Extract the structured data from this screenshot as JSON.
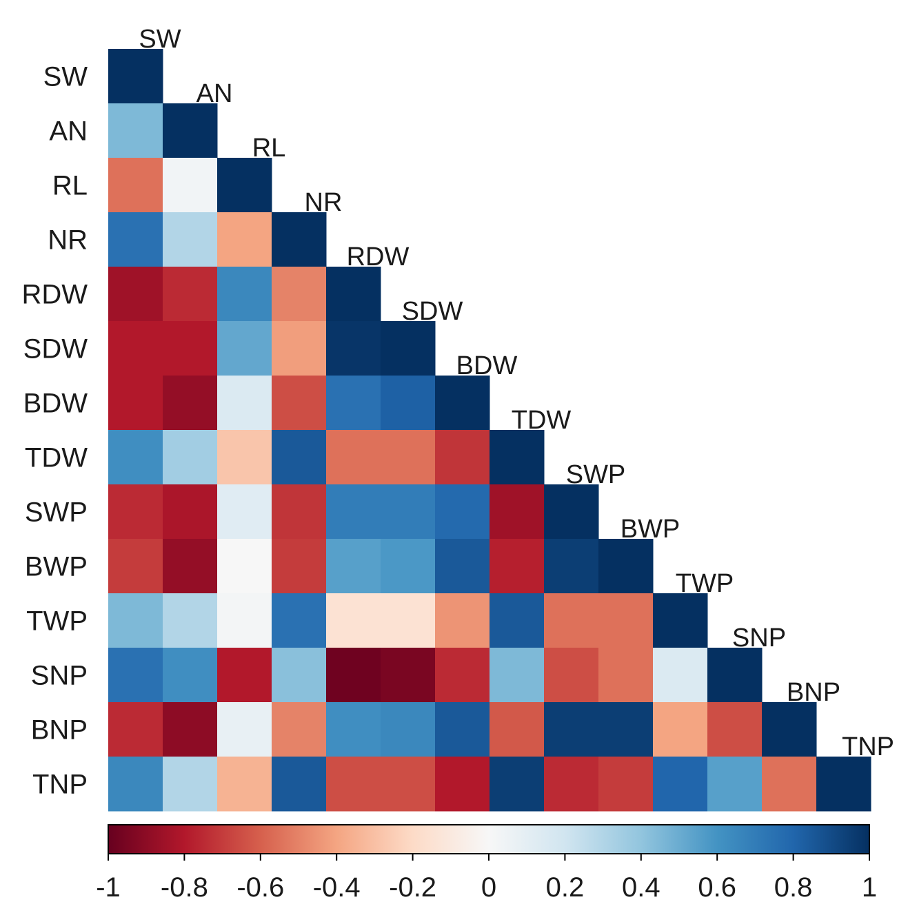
{
  "chart_data": {
    "type": "heatmap",
    "subtype": "correlation-lower-triangle",
    "title": "",
    "variables": [
      "SW",
      "AN",
      "RL",
      "NR",
      "RDW",
      "SDW",
      "BDW",
      "TDW",
      "SWP",
      "BWP",
      "TWP",
      "SNP",
      "BNP",
      "TNP"
    ],
    "matrix": [
      [
        1.0,
        0.45,
        -0.55,
        0.75,
        -0.85,
        -0.8,
        -0.8,
        0.62,
        -0.75,
        -0.7,
        0.45,
        0.75,
        -0.75,
        0.65
      ],
      [
        0.45,
        1.0,
        0.03,
        0.3,
        -0.75,
        -0.8,
        -0.88,
        0.35,
        -0.82,
        -0.88,
        0.3,
        0.62,
        -0.9,
        0.3
      ],
      [
        -0.55,
        0.03,
        1.0,
        -0.4,
        0.65,
        0.52,
        0.15,
        -0.28,
        0.12,
        0.0,
        0.02,
        -0.8,
        0.08,
        -0.35
      ],
      [
        0.75,
        0.3,
        -0.4,
        1.0,
        -0.5,
        -0.42,
        -0.65,
        0.85,
        -0.72,
        -0.7,
        0.75,
        0.42,
        -0.5,
        0.85
      ],
      [
        -0.85,
        -0.75,
        0.65,
        -0.5,
        1.0,
        0.98,
        0.75,
        -0.55,
        0.7,
        0.55,
        -0.15,
        -0.98,
        0.62,
        -0.65
      ],
      [
        -0.8,
        -0.8,
        0.52,
        -0.42,
        0.98,
        1.0,
        0.82,
        -0.55,
        0.7,
        0.58,
        -0.15,
        -0.95,
        0.65,
        -0.65
      ],
      [
        -0.8,
        -0.88,
        0.15,
        -0.65,
        0.75,
        0.82,
        1.0,
        -0.72,
        0.78,
        0.85,
        -0.45,
        -0.75,
        0.85,
        -0.8
      ],
      [
        0.62,
        0.35,
        -0.28,
        0.85,
        -0.55,
        -0.55,
        -0.72,
        1.0,
        -0.85,
        -0.78,
        0.85,
        0.45,
        -0.62,
        0.95
      ],
      [
        -0.75,
        -0.82,
        0.12,
        -0.72,
        0.7,
        0.7,
        0.78,
        -0.85,
        1.0,
        0.95,
        -0.55,
        -0.65,
        0.95,
        -0.75
      ],
      [
        -0.7,
        -0.88,
        0.0,
        -0.7,
        0.55,
        0.58,
        0.85,
        -0.78,
        0.95,
        1.0,
        -0.55,
        -0.55,
        0.95,
        -0.7
      ],
      [
        0.45,
        0.3,
        0.02,
        0.75,
        -0.15,
        -0.15,
        -0.45,
        0.85,
        -0.55,
        -0.55,
        1.0,
        0.15,
        -0.4,
        0.8
      ],
      [
        0.75,
        0.62,
        -0.8,
        0.42,
        -0.98,
        -0.95,
        -0.75,
        0.45,
        -0.65,
        -0.55,
        0.15,
        1.0,
        -0.65,
        0.55
      ],
      [
        -0.75,
        -0.9,
        0.08,
        -0.5,
        0.62,
        0.65,
        0.85,
        -0.62,
        0.95,
        0.95,
        -0.4,
        -0.65,
        1.0,
        -0.55
      ],
      [
        0.65,
        0.3,
        -0.35,
        0.85,
        -0.65,
        -0.65,
        -0.8,
        0.95,
        -0.75,
        -0.7,
        0.8,
        0.55,
        -0.55,
        1.0
      ]
    ],
    "colorbar": {
      "range": [
        -1,
        1
      ],
      "ticks": [
        -1,
        -0.8,
        -0.6,
        -0.4,
        -0.2,
        0,
        0.2,
        0.4,
        0.6,
        0.8,
        1
      ],
      "tick_labels": [
        "-1",
        "-0.8",
        "-0.6",
        "-0.4",
        "-0.2",
        "0",
        "0.2",
        "0.4",
        "0.6",
        "0.8",
        "1"
      ],
      "orientation": "horizontal",
      "placement": "bottom"
    },
    "colormap": {
      "name": "RdBu",
      "stops": [
        "#67001f",
        "#b2182b",
        "#d6604d",
        "#f4a582",
        "#fddbc7",
        "#f7f7f7",
        "#d1e5f0",
        "#92c5de",
        "#4393c3",
        "#2166ac",
        "#053061"
      ]
    },
    "grid": false,
    "legend": "bottom colorbar"
  }
}
